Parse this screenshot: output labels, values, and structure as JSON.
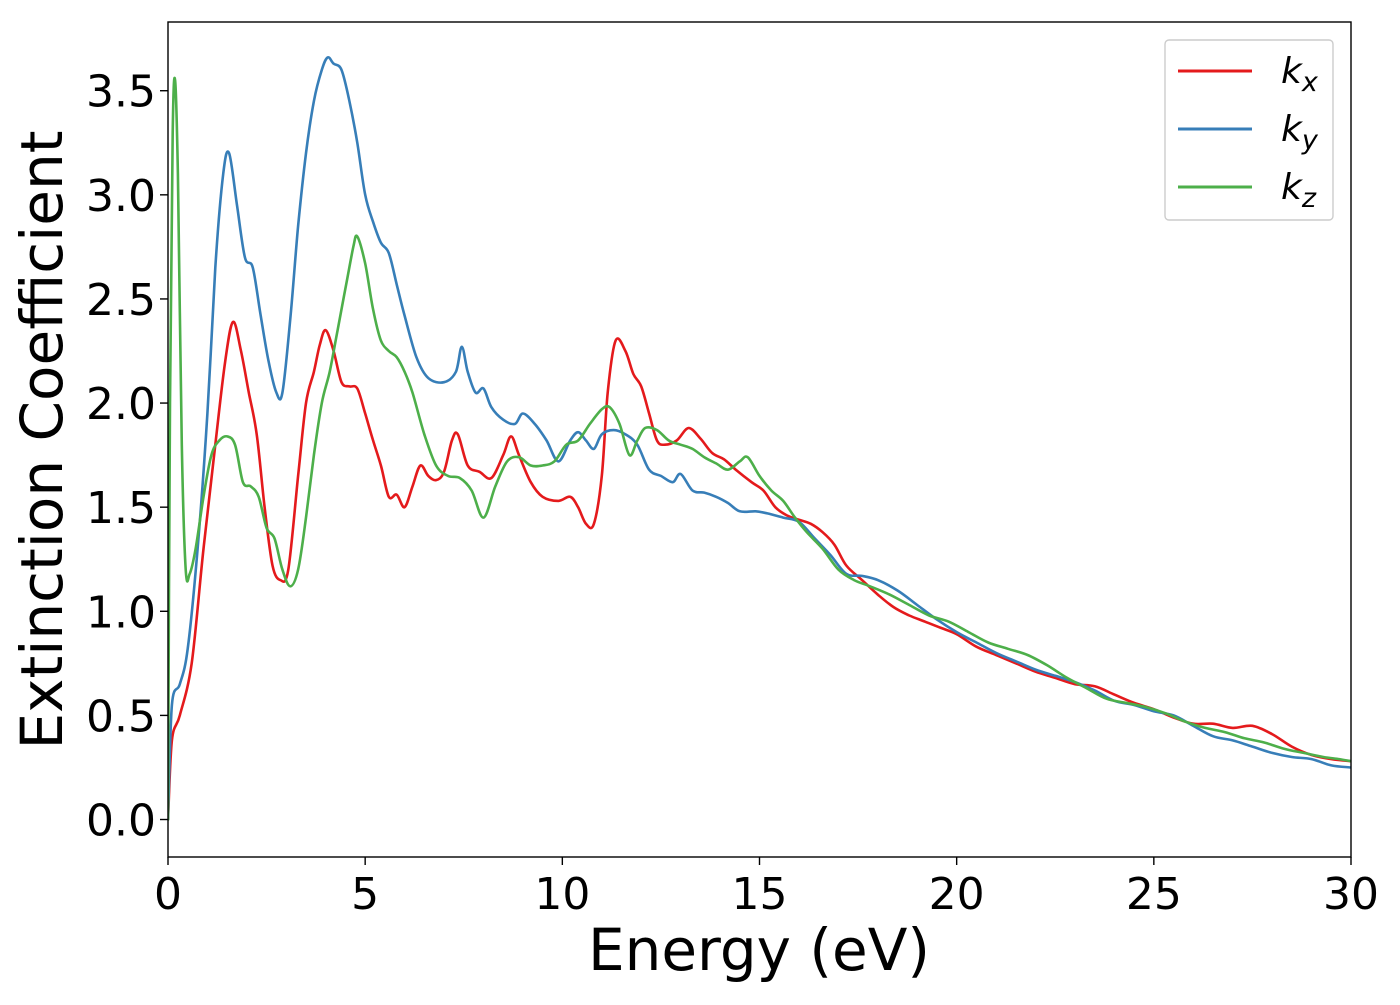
{
  "chart_data": {
    "type": "line",
    "title": "",
    "xlabel": "Energy (eV)",
    "ylabel": "Extinction Coefficient",
    "xlim": [
      0,
      30
    ],
    "ylim": [
      -0.18,
      3.83
    ],
    "xticks": [
      0,
      5,
      10,
      15,
      20,
      25,
      30
    ],
    "xtick_labels": [
      "0",
      "5",
      "10",
      "15",
      "20",
      "25",
      "30"
    ],
    "yticks": [
      0.0,
      0.5,
      1.0,
      1.5,
      2.0,
      2.5,
      3.0,
      3.5
    ],
    "ytick_labels": [
      "0.0",
      "0.5",
      "1.0",
      "1.5",
      "2.0",
      "2.5",
      "3.0",
      "3.5"
    ],
    "grid": false,
    "legend_position": "top-right",
    "series": [
      {
        "name": "k_x",
        "legend_base": "k",
        "legend_sub": "x",
        "color": "#e41a1c",
        "points": [
          [
            0,
            0.0
          ],
          [
            0.1,
            0.38
          ],
          [
            0.3,
            0.5
          ],
          [
            0.6,
            0.75
          ],
          [
            0.9,
            1.3
          ],
          [
            1.2,
            1.8
          ],
          [
            1.45,
            2.2
          ],
          [
            1.65,
            2.39
          ],
          [
            1.85,
            2.25
          ],
          [
            2.05,
            2.05
          ],
          [
            2.25,
            1.85
          ],
          [
            2.45,
            1.5
          ],
          [
            2.65,
            1.22
          ],
          [
            2.85,
            1.15
          ],
          [
            3.05,
            1.2
          ],
          [
            3.3,
            1.65
          ],
          [
            3.5,
            2.0
          ],
          [
            3.7,
            2.15
          ],
          [
            3.85,
            2.28
          ],
          [
            4.0,
            2.35
          ],
          [
            4.2,
            2.25
          ],
          [
            4.4,
            2.1
          ],
          [
            4.6,
            2.08
          ],
          [
            4.8,
            2.07
          ],
          [
            5.0,
            1.95
          ],
          [
            5.2,
            1.82
          ],
          [
            5.4,
            1.7
          ],
          [
            5.6,
            1.55
          ],
          [
            5.8,
            1.56
          ],
          [
            6.0,
            1.5
          ],
          [
            6.2,
            1.6
          ],
          [
            6.4,
            1.7
          ],
          [
            6.6,
            1.65
          ],
          [
            6.8,
            1.63
          ],
          [
            7.0,
            1.67
          ],
          [
            7.2,
            1.82
          ],
          [
            7.35,
            1.85
          ],
          [
            7.6,
            1.7
          ],
          [
            7.9,
            1.67
          ],
          [
            8.2,
            1.64
          ],
          [
            8.5,
            1.75
          ],
          [
            8.7,
            1.84
          ],
          [
            8.9,
            1.75
          ],
          [
            9.2,
            1.62
          ],
          [
            9.5,
            1.55
          ],
          [
            9.9,
            1.53
          ],
          [
            10.2,
            1.55
          ],
          [
            10.4,
            1.5
          ],
          [
            10.6,
            1.42
          ],
          [
            10.8,
            1.42
          ],
          [
            11.0,
            1.65
          ],
          [
            11.15,
            2.05
          ],
          [
            11.35,
            2.3
          ],
          [
            11.6,
            2.25
          ],
          [
            11.8,
            2.14
          ],
          [
            12.0,
            2.08
          ],
          [
            12.2,
            1.95
          ],
          [
            12.4,
            1.82
          ],
          [
            12.6,
            1.8
          ],
          [
            12.9,
            1.82
          ],
          [
            13.2,
            1.88
          ],
          [
            13.5,
            1.83
          ],
          [
            13.8,
            1.76
          ],
          [
            14.1,
            1.73
          ],
          [
            14.4,
            1.68
          ],
          [
            14.8,
            1.62
          ],
          [
            15.1,
            1.58
          ],
          [
            15.4,
            1.5
          ],
          [
            15.7,
            1.46
          ],
          [
            16.0,
            1.44
          ],
          [
            16.3,
            1.42
          ],
          [
            16.6,
            1.38
          ],
          [
            16.9,
            1.32
          ],
          [
            17.2,
            1.22
          ],
          [
            17.6,
            1.15
          ],
          [
            18.0,
            1.08
          ],
          [
            18.4,
            1.02
          ],
          [
            18.8,
            0.98
          ],
          [
            19.2,
            0.95
          ],
          [
            19.6,
            0.92
          ],
          [
            20.0,
            0.89
          ],
          [
            20.5,
            0.83
          ],
          [
            21.0,
            0.79
          ],
          [
            21.5,
            0.75
          ],
          [
            22.0,
            0.71
          ],
          [
            22.5,
            0.68
          ],
          [
            23.0,
            0.65
          ],
          [
            23.5,
            0.64
          ],
          [
            24.0,
            0.6
          ],
          [
            24.5,
            0.56
          ],
          [
            25.0,
            0.53
          ],
          [
            25.5,
            0.49
          ],
          [
            26.0,
            0.46
          ],
          [
            26.5,
            0.46
          ],
          [
            27.0,
            0.44
          ],
          [
            27.5,
            0.45
          ],
          [
            28.0,
            0.41
          ],
          [
            28.5,
            0.35
          ],
          [
            29.0,
            0.31
          ],
          [
            29.5,
            0.29
          ],
          [
            30.0,
            0.28
          ]
        ]
      },
      {
        "name": "k_y",
        "legend_base": "k",
        "legend_sub": "y",
        "color": "#377eb8",
        "points": [
          [
            0,
            0.0
          ],
          [
            0.1,
            0.55
          ],
          [
            0.3,
            0.65
          ],
          [
            0.5,
            0.82
          ],
          [
            0.75,
            1.3
          ],
          [
            1.0,
            1.95
          ],
          [
            1.2,
            2.65
          ],
          [
            1.4,
            3.1
          ],
          [
            1.55,
            3.2
          ],
          [
            1.75,
            2.95
          ],
          [
            1.95,
            2.7
          ],
          [
            2.15,
            2.65
          ],
          [
            2.35,
            2.42
          ],
          [
            2.55,
            2.2
          ],
          [
            2.75,
            2.05
          ],
          [
            2.9,
            2.05
          ],
          [
            3.1,
            2.4
          ],
          [
            3.3,
            2.85
          ],
          [
            3.5,
            3.2
          ],
          [
            3.7,
            3.45
          ],
          [
            3.9,
            3.6
          ],
          [
            4.05,
            3.66
          ],
          [
            4.2,
            3.63
          ],
          [
            4.4,
            3.6
          ],
          [
            4.6,
            3.45
          ],
          [
            4.8,
            3.25
          ],
          [
            5.0,
            3.0
          ],
          [
            5.2,
            2.87
          ],
          [
            5.4,
            2.77
          ],
          [
            5.6,
            2.72
          ],
          [
            5.8,
            2.57
          ],
          [
            6.0,
            2.42
          ],
          [
            6.3,
            2.22
          ],
          [
            6.6,
            2.12
          ],
          [
            7.0,
            2.1
          ],
          [
            7.3,
            2.15
          ],
          [
            7.45,
            2.27
          ],
          [
            7.6,
            2.15
          ],
          [
            7.8,
            2.05
          ],
          [
            8.0,
            2.07
          ],
          [
            8.2,
            1.98
          ],
          [
            8.5,
            1.92
          ],
          [
            8.8,
            1.9
          ],
          [
            9.0,
            1.95
          ],
          [
            9.3,
            1.9
          ],
          [
            9.6,
            1.82
          ],
          [
            9.9,
            1.72
          ],
          [
            10.2,
            1.82
          ],
          [
            10.4,
            1.86
          ],
          [
            10.6,
            1.82
          ],
          [
            10.8,
            1.78
          ],
          [
            11.0,
            1.85
          ],
          [
            11.3,
            1.87
          ],
          [
            11.6,
            1.85
          ],
          [
            11.9,
            1.8
          ],
          [
            12.2,
            1.68
          ],
          [
            12.5,
            1.65
          ],
          [
            12.8,
            1.62
          ],
          [
            13.0,
            1.66
          ],
          [
            13.3,
            1.58
          ],
          [
            13.6,
            1.57
          ],
          [
            13.9,
            1.55
          ],
          [
            14.2,
            1.52
          ],
          [
            14.5,
            1.48
          ],
          [
            14.9,
            1.48
          ],
          [
            15.2,
            1.47
          ],
          [
            15.6,
            1.45
          ],
          [
            16.0,
            1.43
          ],
          [
            16.4,
            1.35
          ],
          [
            16.8,
            1.27
          ],
          [
            17.2,
            1.18
          ],
          [
            17.6,
            1.17
          ],
          [
            18.0,
            1.15
          ],
          [
            18.5,
            1.1
          ],
          [
            19.0,
            1.03
          ],
          [
            19.5,
            0.96
          ],
          [
            20.0,
            0.9
          ],
          [
            20.5,
            0.85
          ],
          [
            21.0,
            0.8
          ],
          [
            21.5,
            0.76
          ],
          [
            22.0,
            0.72
          ],
          [
            22.5,
            0.69
          ],
          [
            23.0,
            0.66
          ],
          [
            23.5,
            0.62
          ],
          [
            24.0,
            0.57
          ],
          [
            24.5,
            0.55
          ],
          [
            25.0,
            0.52
          ],
          [
            25.5,
            0.5
          ],
          [
            26.0,
            0.45
          ],
          [
            26.5,
            0.4
          ],
          [
            27.0,
            0.38
          ],
          [
            27.5,
            0.35
          ],
          [
            28.0,
            0.32
          ],
          [
            28.5,
            0.3
          ],
          [
            29.0,
            0.29
          ],
          [
            29.5,
            0.26
          ],
          [
            30.0,
            0.25
          ]
        ]
      },
      {
        "name": "k_z",
        "legend_base": "k",
        "legend_sub": "z",
        "color": "#4daf4a",
        "points": [
          [
            0,
            0.0
          ],
          [
            0.05,
            2.0
          ],
          [
            0.12,
            3.3
          ],
          [
            0.18,
            3.55
          ],
          [
            0.25,
            3.1
          ],
          [
            0.35,
            1.8
          ],
          [
            0.45,
            1.2
          ],
          [
            0.55,
            1.18
          ],
          [
            0.7,
            1.3
          ],
          [
            0.9,
            1.55
          ],
          [
            1.1,
            1.75
          ],
          [
            1.3,
            1.82
          ],
          [
            1.5,
            1.84
          ],
          [
            1.7,
            1.8
          ],
          [
            1.9,
            1.62
          ],
          [
            2.1,
            1.6
          ],
          [
            2.3,
            1.55
          ],
          [
            2.5,
            1.4
          ],
          [
            2.7,
            1.35
          ],
          [
            2.9,
            1.2
          ],
          [
            3.1,
            1.12
          ],
          [
            3.3,
            1.2
          ],
          [
            3.5,
            1.45
          ],
          [
            3.7,
            1.75
          ],
          [
            3.9,
            2.0
          ],
          [
            4.1,
            2.15
          ],
          [
            4.3,
            2.35
          ],
          [
            4.5,
            2.55
          ],
          [
            4.7,
            2.75
          ],
          [
            4.8,
            2.8
          ],
          [
            5.0,
            2.67
          ],
          [
            5.2,
            2.45
          ],
          [
            5.4,
            2.3
          ],
          [
            5.6,
            2.25
          ],
          [
            5.8,
            2.22
          ],
          [
            6.0,
            2.15
          ],
          [
            6.2,
            2.05
          ],
          [
            6.5,
            1.85
          ],
          [
            6.8,
            1.7
          ],
          [
            7.1,
            1.65
          ],
          [
            7.4,
            1.64
          ],
          [
            7.7,
            1.58
          ],
          [
            8.0,
            1.45
          ],
          [
            8.3,
            1.6
          ],
          [
            8.6,
            1.72
          ],
          [
            8.9,
            1.74
          ],
          [
            9.2,
            1.7
          ],
          [
            9.5,
            1.7
          ],
          [
            9.8,
            1.72
          ],
          [
            10.1,
            1.8
          ],
          [
            10.4,
            1.82
          ],
          [
            10.7,
            1.9
          ],
          [
            11.0,
            1.97
          ],
          [
            11.2,
            1.98
          ],
          [
            11.45,
            1.9
          ],
          [
            11.7,
            1.75
          ],
          [
            11.9,
            1.82
          ],
          [
            12.1,
            1.88
          ],
          [
            12.4,
            1.87
          ],
          [
            12.7,
            1.82
          ],
          [
            13.0,
            1.8
          ],
          [
            13.3,
            1.78
          ],
          [
            13.6,
            1.74
          ],
          [
            13.9,
            1.71
          ],
          [
            14.2,
            1.68
          ],
          [
            14.5,
            1.72
          ],
          [
            14.7,
            1.74
          ],
          [
            15.0,
            1.65
          ],
          [
            15.3,
            1.58
          ],
          [
            15.6,
            1.53
          ],
          [
            15.9,
            1.45
          ],
          [
            16.2,
            1.38
          ],
          [
            16.6,
            1.3
          ],
          [
            17.0,
            1.2
          ],
          [
            17.4,
            1.15
          ],
          [
            17.8,
            1.12
          ],
          [
            18.3,
            1.08
          ],
          [
            18.8,
            1.03
          ],
          [
            19.3,
            0.98
          ],
          [
            19.8,
            0.95
          ],
          [
            20.3,
            0.9
          ],
          [
            20.8,
            0.85
          ],
          [
            21.3,
            0.82
          ],
          [
            21.8,
            0.79
          ],
          [
            22.3,
            0.74
          ],
          [
            22.8,
            0.68
          ],
          [
            23.3,
            0.63
          ],
          [
            23.8,
            0.58
          ],
          [
            24.3,
            0.56
          ],
          [
            24.8,
            0.54
          ],
          [
            25.3,
            0.51
          ],
          [
            25.8,
            0.47
          ],
          [
            26.3,
            0.44
          ],
          [
            26.8,
            0.42
          ],
          [
            27.3,
            0.39
          ],
          [
            27.8,
            0.37
          ],
          [
            28.3,
            0.34
          ],
          [
            28.8,
            0.32
          ],
          [
            29.3,
            0.3
          ],
          [
            29.7,
            0.29
          ],
          [
            30.0,
            0.28
          ]
        ]
      }
    ]
  }
}
